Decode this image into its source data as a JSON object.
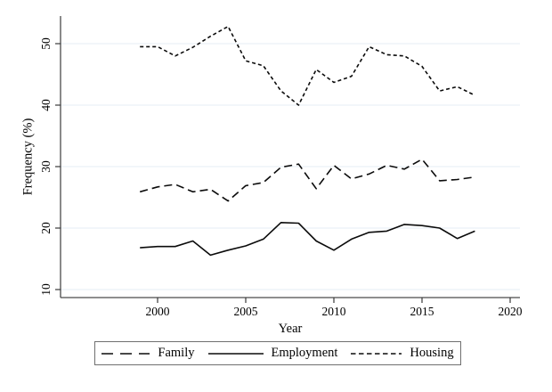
{
  "chart_data": {
    "type": "line",
    "title": "",
    "xlabel": "Year",
    "ylabel": "Frequency (%)",
    "x": [
      1999,
      2000,
      2001,
      2002,
      2003,
      2004,
      2005,
      2006,
      2007,
      2008,
      2009,
      2010,
      2011,
      2012,
      2013,
      2014,
      2015,
      2016,
      2017,
      2018
    ],
    "series": [
      {
        "name": "Family",
        "dash": "long-dash",
        "values": [
          25.9,
          26.7,
          27.1,
          25.9,
          26.3,
          24.4,
          26.9,
          27.4,
          29.9,
          30.4,
          26.4,
          30.2,
          28.0,
          28.8,
          30.2,
          29.6,
          31.2,
          27.7,
          27.9,
          28.3
        ]
      },
      {
        "name": "Employment",
        "dash": "solid",
        "values": [
          16.8,
          17.0,
          17.0,
          17.9,
          15.6,
          16.4,
          17.1,
          18.2,
          20.9,
          20.8,
          17.9,
          16.4,
          18.2,
          19.3,
          19.5,
          20.6,
          20.4,
          20.0,
          18.3,
          19.5
        ]
      },
      {
        "name": "Housing",
        "dash": "short-dash",
        "values": [
          49.5,
          49.5,
          48.0,
          49.4,
          51.2,
          52.8,
          47.2,
          46.4,
          42.3,
          40.0,
          45.8,
          43.7,
          44.7,
          49.5,
          48.2,
          48.0,
          46.3,
          42.3,
          43.0,
          41.6
        ]
      }
    ],
    "xticks": [
      2000,
      2005,
      2010,
      2015,
      2020
    ],
    "yticks": [
      10,
      20,
      30,
      40,
      50
    ],
    "xlim": [
      1994.5,
      2020.6
    ],
    "ylim": [
      8.7,
      54.9
    ],
    "grid": "horizontal",
    "legend_position": "bottom",
    "line_color": "#0b0b0b",
    "grid_color": "#e4ecf4",
    "axis_color": "#4a4a4a",
    "tick_color": "#3a3a3a",
    "background": "#ffffff",
    "legend_border_color": "#6f6f6f"
  }
}
